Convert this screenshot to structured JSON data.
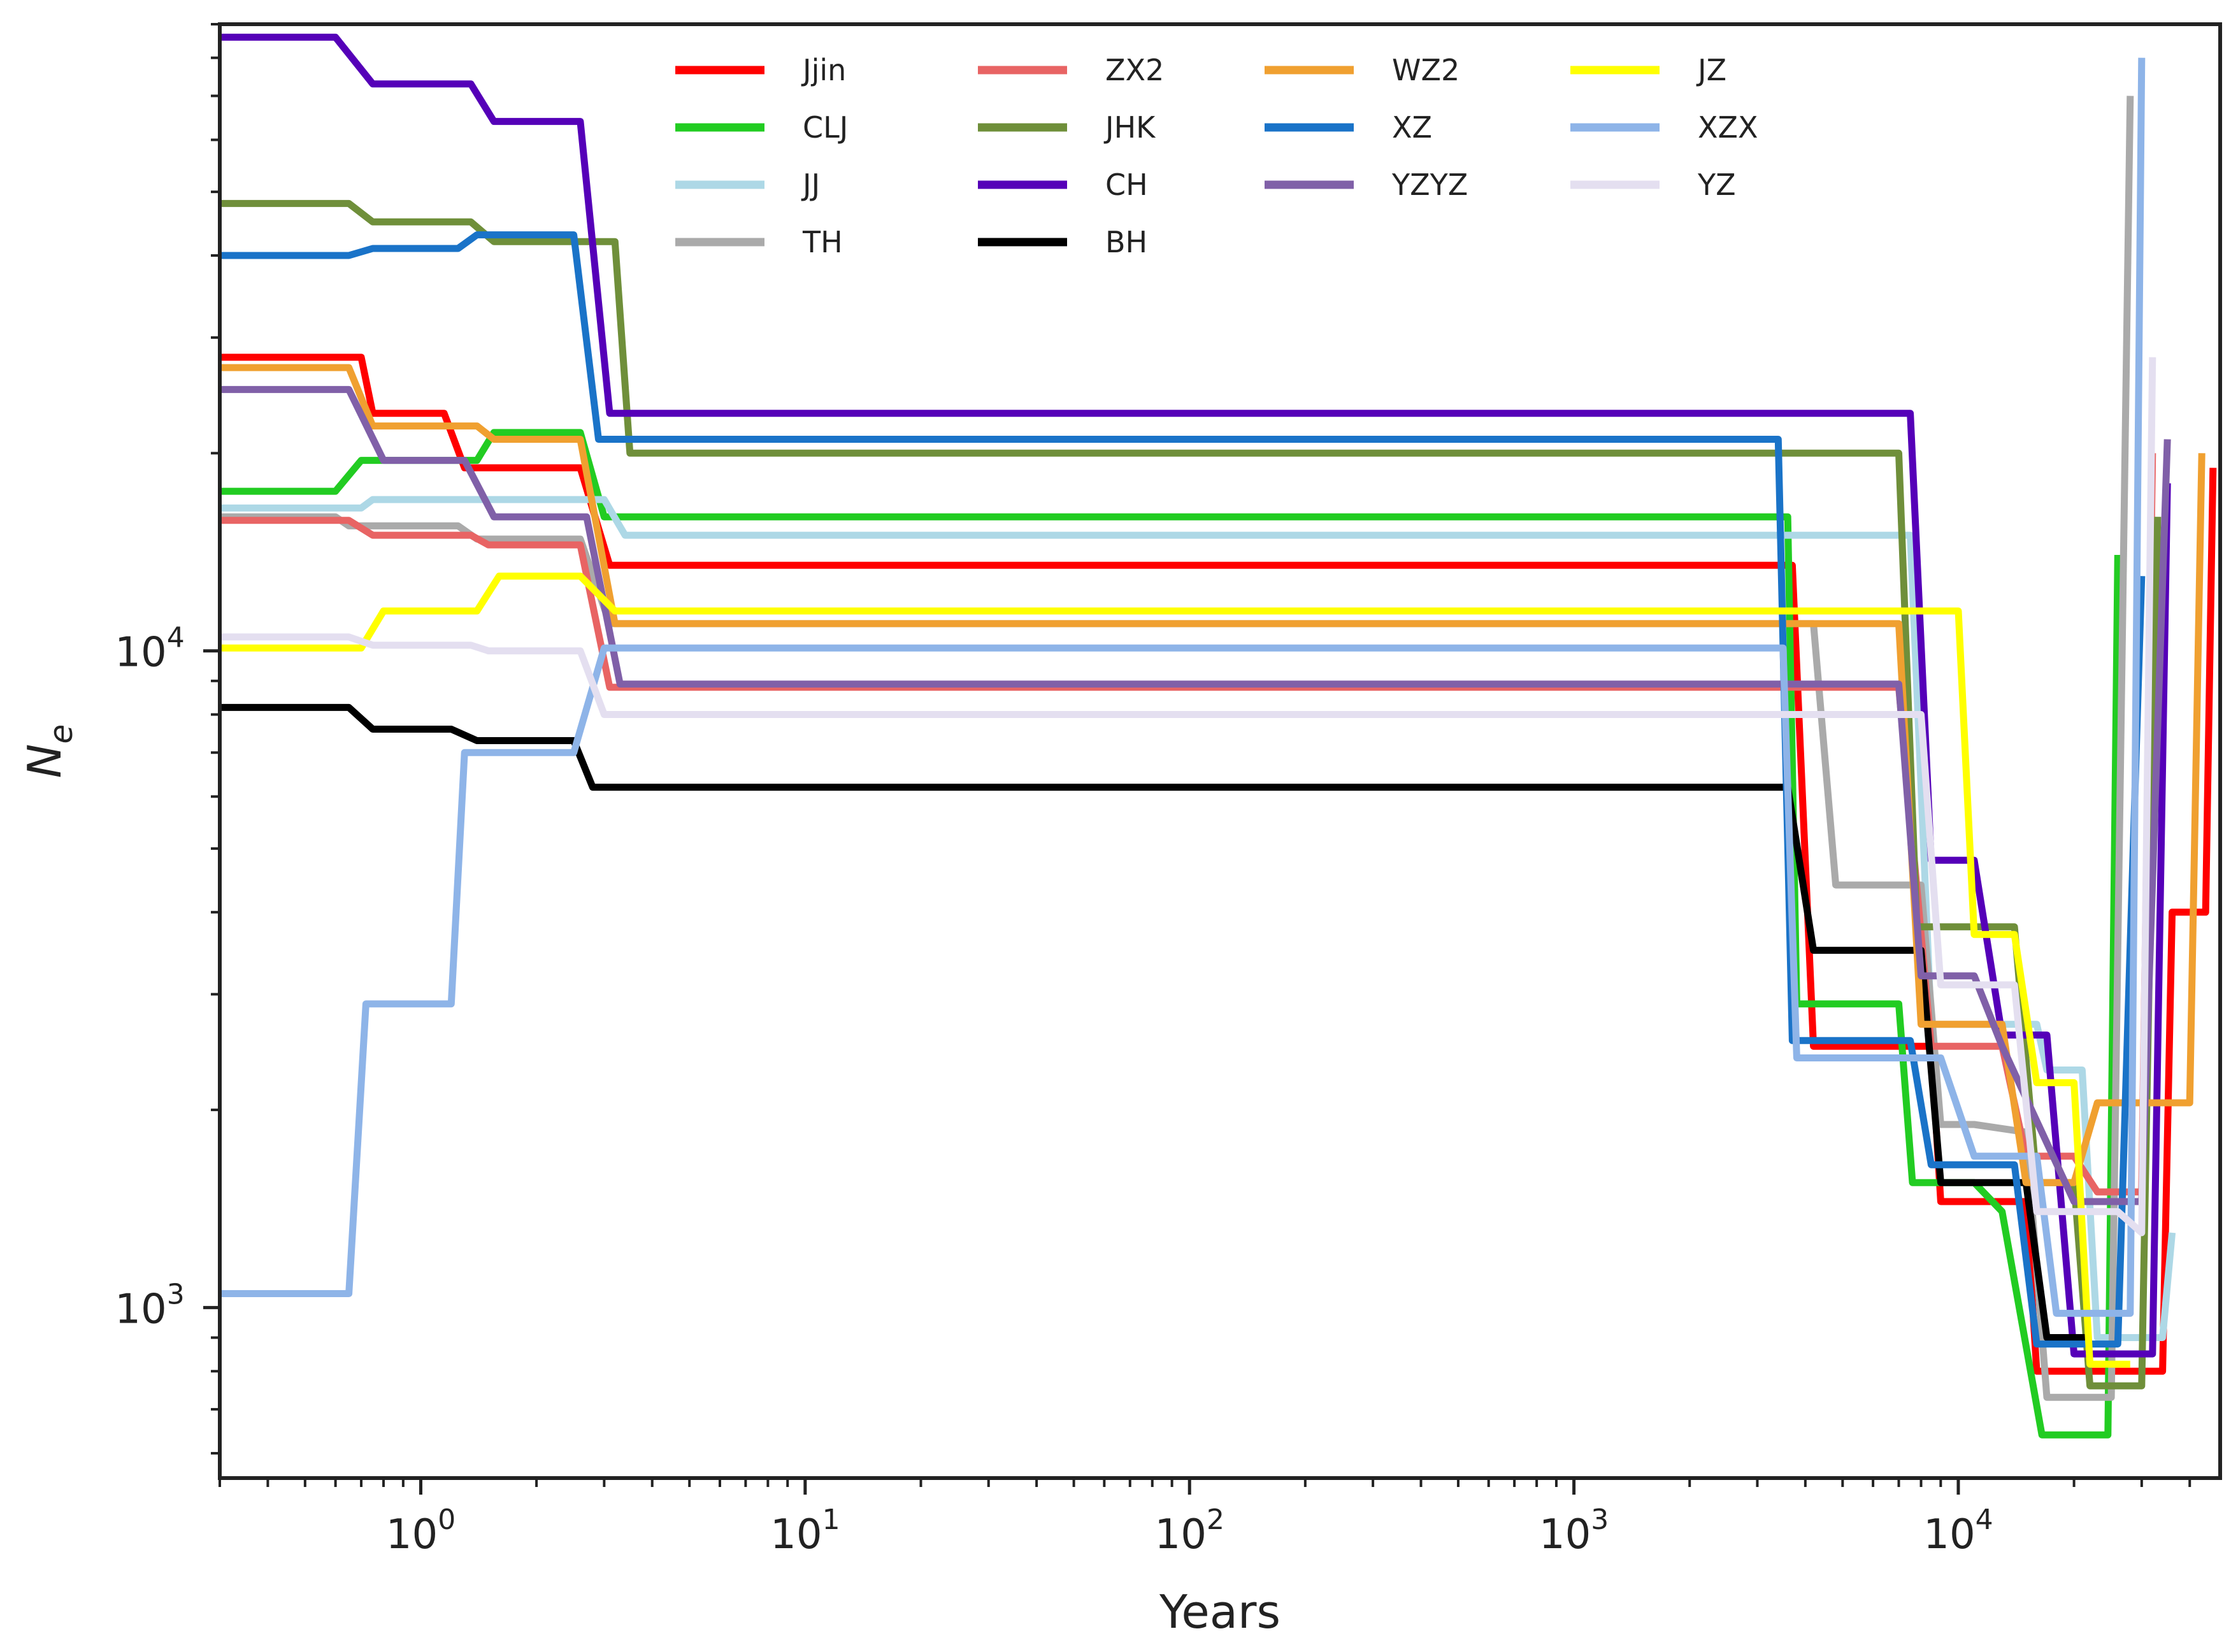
{
  "chart_data": {
    "type": "line",
    "title": "",
    "xlabel": "Years",
    "ylabel": "N",
    "ylabel_sub": "e",
    "xscale": "log",
    "yscale": "log",
    "xlim": [
      0.3,
      48000
    ],
    "ylim": [
      550,
      90000
    ],
    "xticks": [
      {
        "value": 1,
        "base": "10",
        "exp": "0"
      },
      {
        "value": 10,
        "base": "10",
        "exp": "1"
      },
      {
        "value": 100,
        "base": "10",
        "exp": "2"
      },
      {
        "value": 1000,
        "base": "10",
        "exp": "3"
      },
      {
        "value": 10000,
        "base": "10",
        "exp": "4"
      }
    ],
    "yticks": [
      {
        "value": 1000,
        "base": "10",
        "exp": "3"
      },
      {
        "value": 10000,
        "base": "10",
        "exp": "4"
      }
    ],
    "grid": false,
    "legend_position": "top",
    "series": [
      {
        "name": "Jjin",
        "color": "#ff0000",
        "points": [
          [
            0.3,
            28000
          ],
          [
            0.7,
            28000
          ],
          [
            0.75,
            23000
          ],
          [
            1.15,
            23000
          ],
          [
            1.3,
            19000
          ],
          [
            2.6,
            19000
          ],
          [
            3.1,
            13500
          ],
          [
            3700,
            13500
          ],
          [
            4200,
            2500
          ],
          [
            8500,
            2500
          ],
          [
            9000,
            1450
          ],
          [
            15000,
            1450
          ],
          [
            16000,
            800
          ],
          [
            25000,
            800
          ],
          [
            34000,
            800
          ],
          [
            36000,
            4000
          ],
          [
            44000,
            4000
          ],
          [
            46000,
            19000
          ]
        ]
      },
      {
        "name": "CLJ",
        "color": "#22cc22",
        "points": [
          [
            0.3,
            17500
          ],
          [
            0.6,
            17500
          ],
          [
            0.7,
            19500
          ],
          [
            1.4,
            19500
          ],
          [
            1.55,
            21500
          ],
          [
            2.6,
            21500
          ],
          [
            3,
            16000
          ],
          [
            3600,
            16000
          ],
          [
            3800,
            2900
          ],
          [
            7000,
            2900
          ],
          [
            7600,
            1550
          ],
          [
            11000,
            1550
          ],
          [
            13000,
            1400
          ],
          [
            16500,
            640
          ],
          [
            24500,
            640
          ],
          [
            26000,
            14000
          ]
        ]
      },
      {
        "name": "JJ",
        "color": "#add8e6",
        "points": [
          [
            0.3,
            16500
          ],
          [
            0.7,
            16500
          ],
          [
            0.75,
            17000
          ],
          [
            1.6,
            17000
          ],
          [
            2,
            17000
          ],
          [
            3,
            17000
          ],
          [
            3.4,
            15000
          ],
          [
            7500,
            15000
          ],
          [
            8500,
            2700
          ],
          [
            16000,
            2700
          ],
          [
            17000,
            2300
          ],
          [
            21000,
            2300
          ],
          [
            23000,
            900
          ],
          [
            34000,
            900
          ],
          [
            36000,
            1300
          ]
        ]
      },
      {
        "name": "TH",
        "color": "#aaaaaa",
        "points": [
          [
            0.3,
            16000
          ],
          [
            0.6,
            16000
          ],
          [
            0.65,
            15500
          ],
          [
            1.25,
            15500
          ],
          [
            1.4,
            14800
          ],
          [
            2.6,
            14800
          ],
          [
            3.1,
            11000
          ],
          [
            4200,
            11000
          ],
          [
            4800,
            4400
          ],
          [
            8000,
            4400
          ],
          [
            9000,
            1900
          ],
          [
            11000,
            1900
          ],
          [
            15000,
            1850
          ],
          [
            17000,
            730
          ],
          [
            25000,
            730
          ],
          [
            28000,
            70000
          ]
        ]
      },
      {
        "name": "ZX2",
        "color": "#e86464",
        "points": [
          [
            0.3,
            15800
          ],
          [
            0.65,
            15800
          ],
          [
            0.75,
            15000
          ],
          [
            1.35,
            15000
          ],
          [
            1.5,
            14500
          ],
          [
            2.6,
            14500
          ],
          [
            3.1,
            8800
          ],
          [
            7000,
            8800
          ],
          [
            8500,
            2500
          ],
          [
            13000,
            2500
          ],
          [
            15000,
            1700
          ],
          [
            20000,
            1700
          ],
          [
            23000,
            1500
          ],
          [
            30000,
            1500
          ],
          [
            32000,
            20000
          ]
        ]
      },
      {
        "name": "JHK",
        "color": "#6f8f3a",
        "points": [
          [
            0.3,
            48000
          ],
          [
            0.65,
            48000
          ],
          [
            0.75,
            45000
          ],
          [
            1.35,
            45000
          ],
          [
            1.55,
            42000
          ],
          [
            3.2,
            42000
          ],
          [
            3.5,
            20000
          ],
          [
            7000,
            20000
          ],
          [
            7800,
            3800
          ],
          [
            14000,
            3800
          ],
          [
            16000,
            1550
          ],
          [
            20000,
            1550
          ],
          [
            22000,
            760
          ],
          [
            30000,
            760
          ],
          [
            33000,
            16000
          ]
        ]
      },
      {
        "name": "CH",
        "color": "#5500b8",
        "points": [
          [
            0.3,
            86000
          ],
          [
            0.6,
            86000
          ],
          [
            0.75,
            73000
          ],
          [
            1.35,
            73000
          ],
          [
            1.55,
            64000
          ],
          [
            2.6,
            64000
          ],
          [
            3.1,
            23000
          ],
          [
            7500,
            23000
          ],
          [
            8500,
            4800
          ],
          [
            11000,
            4800
          ],
          [
            13000,
            2600
          ],
          [
            17000,
            2600
          ],
          [
            20000,
            850
          ],
          [
            32000,
            850
          ],
          [
            35000,
            18000
          ]
        ]
      },
      {
        "name": "BH",
        "color": "#000000",
        "points": [
          [
            0.3,
            8200
          ],
          [
            0.65,
            8200
          ],
          [
            0.75,
            7600
          ],
          [
            1.2,
            7600
          ],
          [
            1.4,
            7300
          ],
          [
            2.5,
            7300
          ],
          [
            2.8,
            6200
          ],
          [
            3600,
            6200
          ],
          [
            4200,
            3500
          ],
          [
            8000,
            3500
          ],
          [
            9000,
            1550
          ],
          [
            15000,
            1550
          ],
          [
            17000,
            900
          ],
          [
            22000,
            900
          ]
        ]
      },
      {
        "name": "WZ2",
        "color": "#f0a030",
        "points": [
          [
            0.3,
            27000
          ],
          [
            0.65,
            27000
          ],
          [
            0.75,
            22000
          ],
          [
            1.4,
            22000
          ],
          [
            1.55,
            21000
          ],
          [
            2.6,
            21000
          ],
          [
            3.2,
            11000
          ],
          [
            7000,
            11000
          ],
          [
            8000,
            2700
          ],
          [
            13000,
            2700
          ],
          [
            15000,
            1550
          ],
          [
            20000,
            1550
          ],
          [
            23000,
            2050
          ],
          [
            40000,
            2050
          ],
          [
            43000,
            20000
          ]
        ]
      },
      {
        "name": "XZ",
        "color": "#1a73c8",
        "points": [
          [
            0.3,
            40000
          ],
          [
            0.65,
            40000
          ],
          [
            0.75,
            41000
          ],
          [
            1.25,
            41000
          ],
          [
            1.4,
            43000
          ],
          [
            2.5,
            43000
          ],
          [
            2.9,
            21000
          ],
          [
            3400,
            21000
          ],
          [
            3700,
            2550
          ],
          [
            7500,
            2550
          ],
          [
            8500,
            1650
          ],
          [
            14000,
            1650
          ],
          [
            16000,
            880
          ],
          [
            26000,
            880
          ],
          [
            30000,
            13000
          ]
        ]
      },
      {
        "name": "YZYZ",
        "color": "#8060a8",
        "points": [
          [
            0.3,
            25000
          ],
          [
            0.65,
            25000
          ],
          [
            0.8,
            19500
          ],
          [
            1.3,
            19500
          ],
          [
            1.55,
            16000
          ],
          [
            2.7,
            16000
          ],
          [
            3.3,
            8900
          ],
          [
            7000,
            8900
          ],
          [
            8000,
            3200
          ],
          [
            11000,
            3200
          ],
          [
            13000,
            2500
          ],
          [
            20000,
            1450
          ],
          [
            25000,
            1450
          ],
          [
            30000,
            1450
          ],
          [
            35000,
            21000
          ]
        ]
      },
      {
        "name": "JZ",
        "color": "#ffff00",
        "points": [
          [
            0.3,
            10100
          ],
          [
            0.7,
            10100
          ],
          [
            0.8,
            11500
          ],
          [
            1.4,
            11500
          ],
          [
            1.6,
            13000
          ],
          [
            2.6,
            13000
          ],
          [
            3.2,
            11500
          ],
          [
            10000,
            11500
          ],
          [
            11000,
            3700
          ],
          [
            14000,
            3700
          ],
          [
            16000,
            2200
          ],
          [
            20000,
            2200
          ],
          [
            22000,
            820
          ],
          [
            28000,
            820
          ]
        ]
      },
      {
        "name": "XZX",
        "color": "#8eb4e8",
        "points": [
          [
            0.3,
            1050
          ],
          [
            0.65,
            1050
          ],
          [
            0.72,
            2900
          ],
          [
            1.2,
            2900
          ],
          [
            1.3,
            7000
          ],
          [
            2.5,
            7000
          ],
          [
            3,
            10100
          ],
          [
            3500,
            10100
          ],
          [
            3800,
            2400
          ],
          [
            9000,
            2400
          ],
          [
            11000,
            1700
          ],
          [
            16000,
            1700
          ],
          [
            18000,
            980
          ],
          [
            28000,
            980
          ],
          [
            30000,
            80000
          ]
        ]
      },
      {
        "name": "YZ",
        "color": "#e4dff0",
        "points": [
          [
            0.3,
            10500
          ],
          [
            0.65,
            10500
          ],
          [
            0.75,
            10200
          ],
          [
            1.35,
            10200
          ],
          [
            1.5,
            10000
          ],
          [
            2.6,
            10000
          ],
          [
            3,
            8000
          ],
          [
            8000,
            8000
          ],
          [
            9000,
            3100
          ],
          [
            14000,
            3100
          ],
          [
            16000,
            1400
          ],
          [
            26000,
            1400
          ],
          [
            30000,
            1300
          ],
          [
            32000,
            28000
          ]
        ]
      }
    ]
  }
}
